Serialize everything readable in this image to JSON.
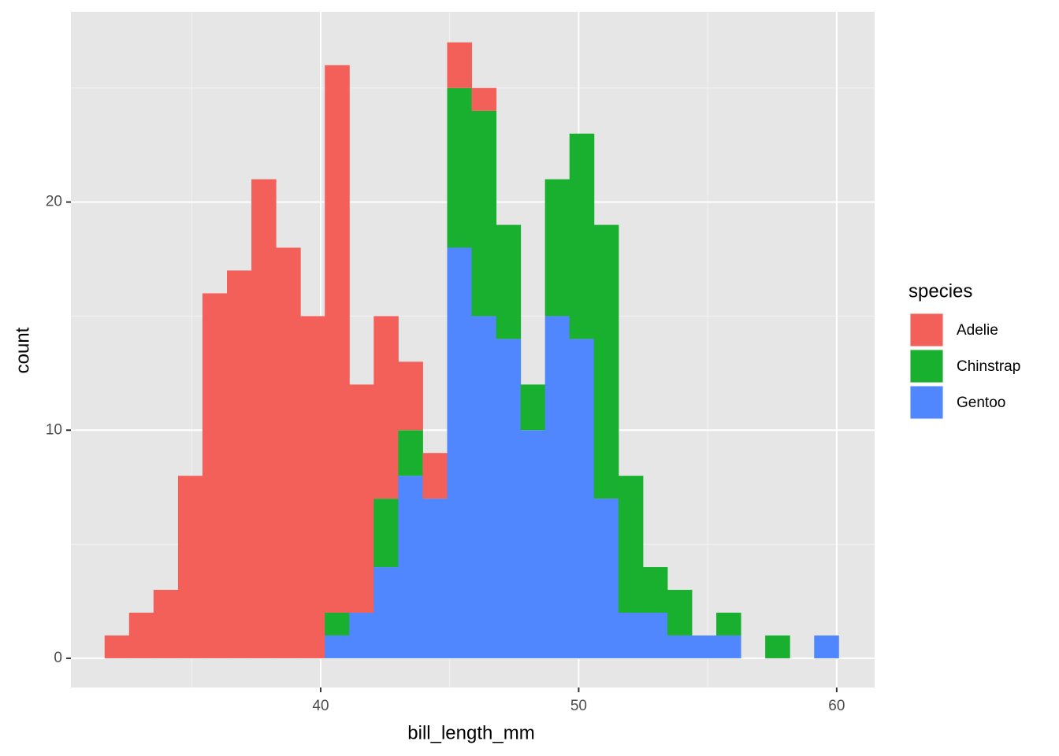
{
  "chart_data": {
    "type": "histogram",
    "stacked": true,
    "x_label": "bill_length_mm",
    "y_label": "count",
    "legend_title": "species",
    "bins": [
      31.626,
      32.574,
      33.522,
      34.471,
      35.419,
      36.367,
      37.316,
      38.264,
      39.212,
      40.16,
      41.109,
      42.057,
      43.005,
      43.953,
      44.902,
      45.85,
      46.798,
      47.747,
      48.695,
      49.643,
      50.591,
      51.54,
      52.488,
      53.436,
      54.384,
      55.333,
      56.281,
      57.229,
      58.178,
      59.126,
      60.074
    ],
    "series": [
      {
        "name": "Adelie",
        "color": "#f3605a",
        "values": [
          1,
          2,
          3,
          8,
          16,
          17,
          21,
          18,
          15,
          24,
          10,
          8,
          3,
          2,
          2,
          1,
          0,
          0,
          0,
          0,
          0,
          0,
          0,
          0,
          0,
          0,
          0,
          0,
          0,
          0
        ]
      },
      {
        "name": "Chinstrap",
        "color": "#19b02f",
        "values": [
          0,
          0,
          0,
          0,
          0,
          0,
          0,
          0,
          0,
          1,
          0,
          3,
          2,
          0,
          7,
          9,
          5,
          2,
          6,
          9,
          12,
          6,
          2,
          2,
          0,
          1,
          0,
          1,
          0,
          0
        ]
      },
      {
        "name": "Gentoo",
        "color": "#5087ff",
        "values": [
          0,
          0,
          0,
          0,
          0,
          0,
          0,
          0,
          0,
          1,
          2,
          4,
          8,
          7,
          18,
          15,
          14,
          10,
          15,
          14,
          7,
          2,
          2,
          1,
          1,
          1,
          0,
          0,
          0,
          1
        ]
      }
    ],
    "xlim": [
      30.32,
      61.47
    ],
    "ylim": [
      -1.28,
      28.34
    ],
    "xticks": [
      40,
      50,
      60
    ],
    "yticks": [
      0,
      10,
      20
    ],
    "x_minor_grid": [
      35,
      45,
      55
    ],
    "y_minor_grid": [
      5,
      15,
      25
    ],
    "grid": true,
    "legend": "right"
  }
}
